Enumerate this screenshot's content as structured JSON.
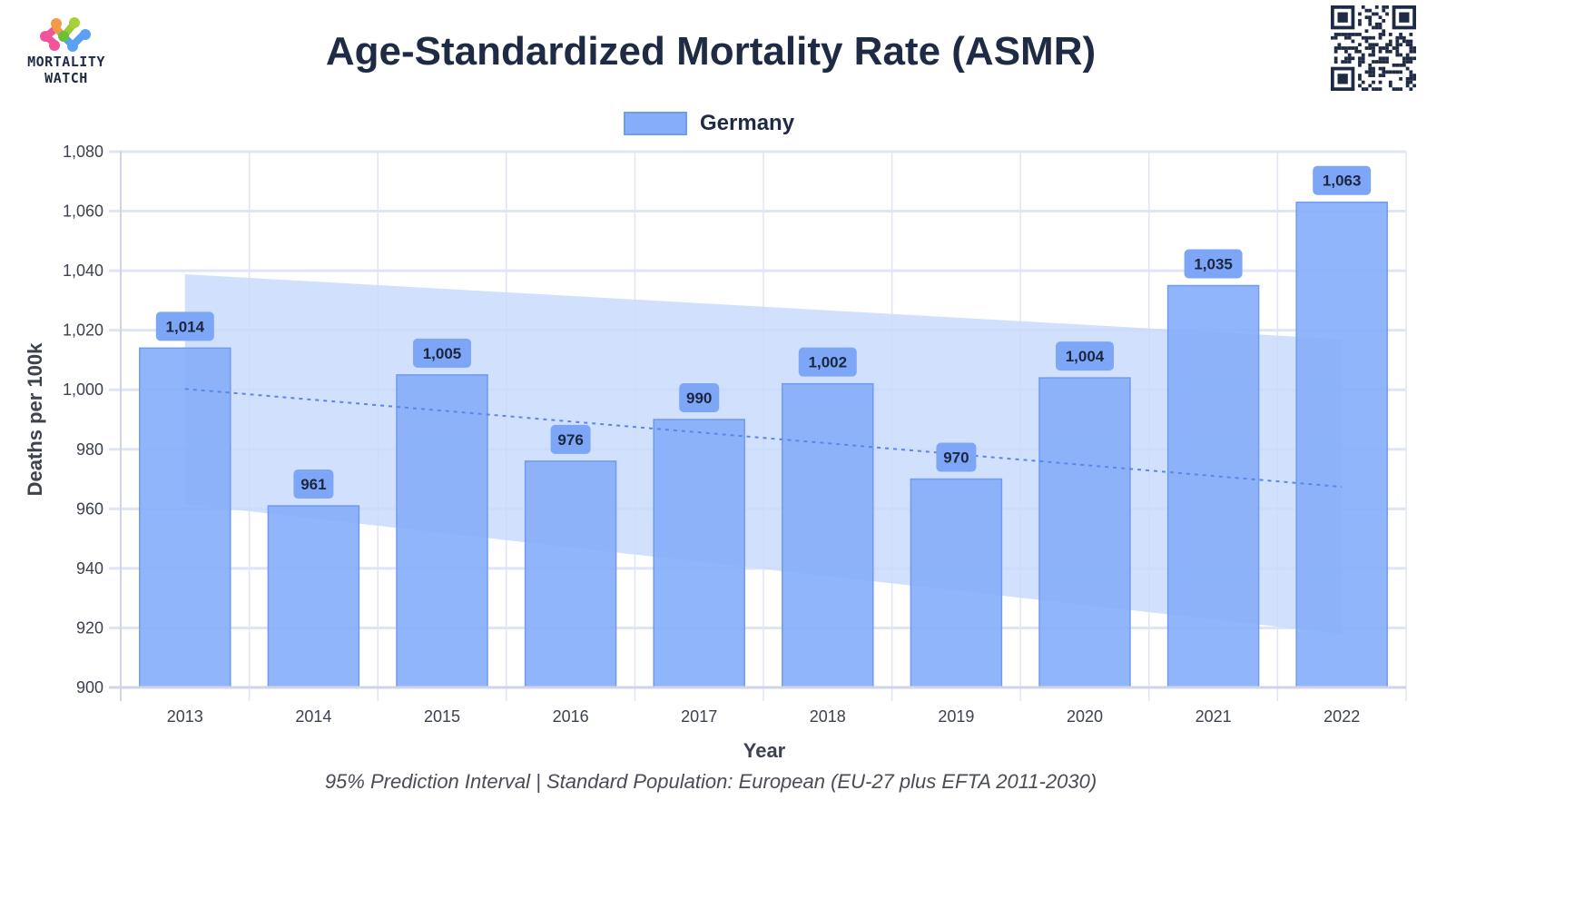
{
  "header": {
    "logo_line1": "MORTALITY",
    "logo_line2": "WATCH",
    "title": "Age-Standardized Mortality Rate (ASMR)"
  },
  "footnote": "95% Prediction Interval | Standard Population: European (EU-27 plus EFTA 2011-2030)",
  "colors": {
    "bar_fill": "#85adfa",
    "bar_border": "#6f9bf0",
    "pi_band": "#c9dafb",
    "baseline": "#5b86e5",
    "grid": "#dfe5f5",
    "label_box": "#7ea6f7",
    "text_dark": "#1f2a44"
  },
  "chart_data": {
    "type": "bar",
    "title": "Age-Standardized Mortality Rate (ASMR)",
    "xlabel": "Year",
    "ylabel": "Deaths per 100k",
    "ylim": [
      900,
      1080
    ],
    "yticks": [
      900,
      920,
      940,
      960,
      980,
      1000,
      1020,
      1040,
      1060,
      1080
    ],
    "ytick_labels": [
      "900",
      "920",
      "940",
      "960",
      "980",
      "1,000",
      "1,020",
      "1,040",
      "1,060",
      "1,080"
    ],
    "grid": true,
    "legend": {
      "position": "top-center",
      "entries": [
        "Germany"
      ]
    },
    "categories": [
      "2013",
      "2014",
      "2015",
      "2016",
      "2017",
      "2018",
      "2019",
      "2020",
      "2021",
      "2022"
    ],
    "series": [
      {
        "name": "Germany",
        "values": [
          1014,
          961,
          1005,
          976,
          990,
          1002,
          970,
          1004,
          1035,
          1063
        ],
        "data_labels": [
          "1,014",
          "961",
          "1,005",
          "976",
          "990",
          "1,002",
          "970",
          "1,004",
          "1,035",
          "1,063"
        ]
      }
    ],
    "baseline": {
      "name": "Baseline trend",
      "style": "dotted",
      "start": {
        "x": "2013",
        "y": 1000.3
      },
      "end": {
        "x": "2022",
        "y": 967.4
      }
    },
    "prediction_interval": {
      "name": "95% Prediction Interval",
      "upper": {
        "start": 1038.8,
        "end": 1017.0
      },
      "lower": {
        "start": 961.6,
        "end": 918.0
      }
    }
  }
}
